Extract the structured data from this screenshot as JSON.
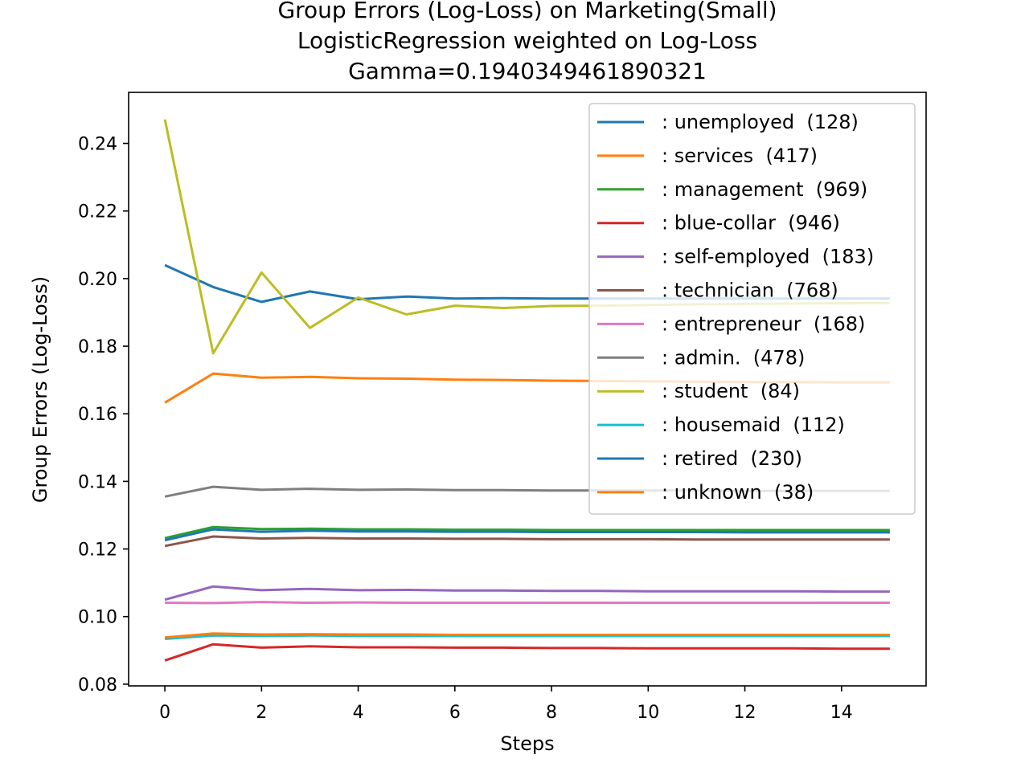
{
  "chart_data": {
    "type": "line",
    "title_lines": [
      "Group Errors (Log-Loss) on Marketing(Small)",
      "LogisticRegression weighted on Log-Loss",
      "Gamma=0.1940349461890321"
    ],
    "xlabel": "Steps",
    "ylabel": "Group Errors (Log-Loss)",
    "xlim": [
      -0.75,
      15.75
    ],
    "ylim": [
      0.0795,
      0.2551
    ],
    "xticks": [
      0,
      2,
      4,
      6,
      8,
      10,
      12,
      14
    ],
    "xtick_labels": [
      "0",
      "2",
      "4",
      "6",
      "8",
      "10",
      "12",
      "14"
    ],
    "yticks": [
      0.08,
      0.1,
      0.12,
      0.14,
      0.16,
      0.18,
      0.2,
      0.22,
      0.24
    ],
    "ytick_labels": [
      "0.08",
      "0.10",
      "0.12",
      "0.14",
      "0.16",
      "0.18",
      "0.20",
      "0.22",
      "0.24"
    ],
    "grid": false,
    "legend_position": "upper right",
    "x": [
      0,
      1,
      2,
      3,
      4,
      5,
      6,
      7,
      8,
      9,
      10,
      11,
      12,
      13,
      14,
      15
    ],
    "series": [
      {
        "name": ": unemployed  (128)",
        "color": "#1f77b4",
        "values": [
          0.204,
          0.1975,
          0.1931,
          0.1962,
          0.1939,
          0.1947,
          0.1941,
          0.1942,
          0.1941,
          0.1941,
          0.1941,
          0.1941,
          0.1941,
          0.1941,
          0.1941,
          0.1941
        ]
      },
      {
        "name": ": services  (417)",
        "color": "#ff7f0e",
        "values": [
          0.1633,
          0.1719,
          0.1707,
          0.1709,
          0.1705,
          0.1704,
          0.1701,
          0.17,
          0.1698,
          0.1697,
          0.1696,
          0.1695,
          0.1694,
          0.1694,
          0.1693,
          0.1693
        ]
      },
      {
        "name": ": management  (969)",
        "color": "#2ca02c",
        "values": [
          0.1232,
          0.1265,
          0.1259,
          0.126,
          0.1258,
          0.1258,
          0.1257,
          0.1257,
          0.1256,
          0.1256,
          0.1256,
          0.1256,
          0.1256,
          0.1256,
          0.1256,
          0.1256
        ]
      },
      {
        "name": ": blue-collar  (946)",
        "color": "#d62728",
        "values": [
          0.087,
          0.0918,
          0.0908,
          0.0912,
          0.0909,
          0.0909,
          0.0908,
          0.0908,
          0.0907,
          0.0907,
          0.0906,
          0.0906,
          0.0906,
          0.0906,
          0.0905,
          0.0905
        ]
      },
      {
        "name": ": self-employed  (183)",
        "color": "#9467bd",
        "values": [
          0.105,
          0.1089,
          0.1078,
          0.1082,
          0.1078,
          0.1079,
          0.1077,
          0.1077,
          0.1076,
          0.1076,
          0.1075,
          0.1075,
          0.1075,
          0.1075,
          0.1074,
          0.1074
        ]
      },
      {
        "name": ": technician  (768)",
        "color": "#8c564b",
        "values": [
          0.1209,
          0.1237,
          0.1231,
          0.1233,
          0.1231,
          0.1231,
          0.123,
          0.123,
          0.1229,
          0.1229,
          0.1229,
          0.1228,
          0.1228,
          0.1228,
          0.1228,
          0.1228
        ]
      },
      {
        "name": ": entrepreneur  (168)",
        "color": "#e377c2",
        "values": [
          0.1041,
          0.104,
          0.1043,
          0.1041,
          0.1042,
          0.1041,
          0.1041,
          0.1041,
          0.1041,
          0.1041,
          0.1041,
          0.1041,
          0.1041,
          0.1041,
          0.1041,
          0.1041
        ]
      },
      {
        "name": ": admin.  (478)",
        "color": "#7f7f7f",
        "values": [
          0.1355,
          0.1384,
          0.1375,
          0.1378,
          0.1375,
          0.1376,
          0.1374,
          0.1374,
          0.1373,
          0.1373,
          0.1373,
          0.1373,
          0.1372,
          0.1372,
          0.1372,
          0.1372
        ]
      },
      {
        "name": ": student  (84)",
        "color": "#bcbd22",
        "values": [
          0.2471,
          0.1779,
          0.2018,
          0.1854,
          0.1944,
          0.1894,
          0.192,
          0.1913,
          0.1919,
          0.192,
          0.1922,
          0.1924,
          0.1925,
          0.1926,
          0.1927,
          0.1928
        ]
      },
      {
        "name": ": housemaid  (112)",
        "color": "#17becf",
        "values": [
          0.0934,
          0.0944,
          0.0943,
          0.0944,
          0.0943,
          0.0943,
          0.0943,
          0.0943,
          0.0943,
          0.0943,
          0.0943,
          0.0943,
          0.0943,
          0.0943,
          0.0943,
          0.0943
        ]
      },
      {
        "name": ": retired  (230)",
        "color": "#1f77b4",
        "values": [
          0.1226,
          0.1258,
          0.1251,
          0.1254,
          0.1252,
          0.1252,
          0.1251,
          0.1251,
          0.125,
          0.125,
          0.125,
          0.125,
          0.1249,
          0.1249,
          0.1249,
          0.1249
        ]
      },
      {
        "name": ": unknown  (38)",
        "color": "#ff7f0e",
        "values": [
          0.0938,
          0.095,
          0.0947,
          0.0948,
          0.0947,
          0.0947,
          0.0946,
          0.0946,
          0.0946,
          0.0946,
          0.0946,
          0.0946,
          0.0946,
          0.0946,
          0.0946,
          0.0946
        ]
      }
    ]
  }
}
